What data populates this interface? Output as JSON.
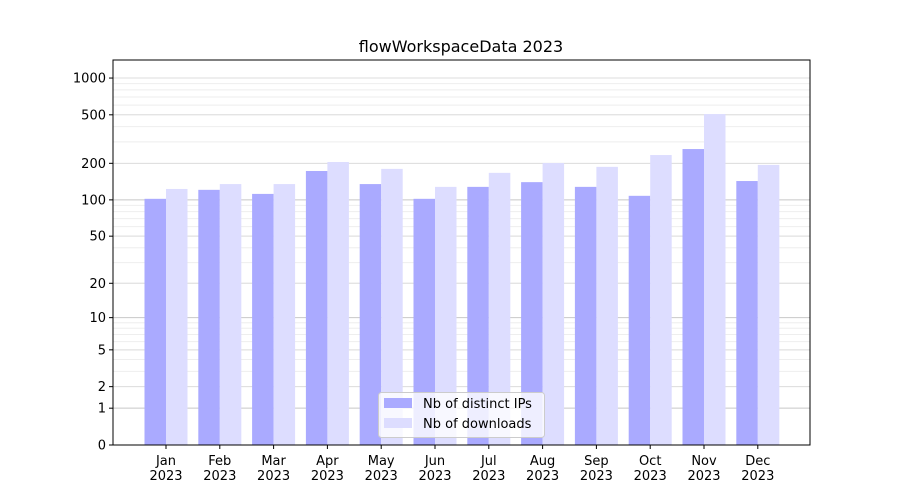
{
  "chart_data": {
    "type": "bar",
    "title": "flowWorkspaceData 2023",
    "xlabel": "",
    "ylabel": "",
    "yscale": "log10(y+1)",
    "ylim": [
      0,
      1300
    ],
    "yticks": [
      0,
      1,
      2,
      5,
      10,
      20,
      50,
      100,
      200,
      500,
      1000
    ],
    "grid": true,
    "legend": "bottom-center",
    "categories": [
      "Jan\n2023",
      "Feb\n2023",
      "Mar\n2023",
      "Apr\n2023",
      "May\n2023",
      "Jun\n2023",
      "Jul\n2023",
      "Aug\n2023",
      "Sep\n2023",
      "Oct\n2023",
      "Nov\n2023",
      "Dec\n2023"
    ],
    "series": [
      {
        "name": "Nb of distinct IPs",
        "color": "#aaaaff",
        "values": [
          102,
          121,
          112,
          173,
          135,
          102,
          128,
          140,
          128,
          108,
          262,
          143
        ]
      },
      {
        "name": "Nb of downloads",
        "color": "#ddddff",
        "values": [
          123,
          135,
          135,
          205,
          180,
          128,
          167,
          201,
          187,
          234,
          507,
          194
        ]
      }
    ]
  }
}
